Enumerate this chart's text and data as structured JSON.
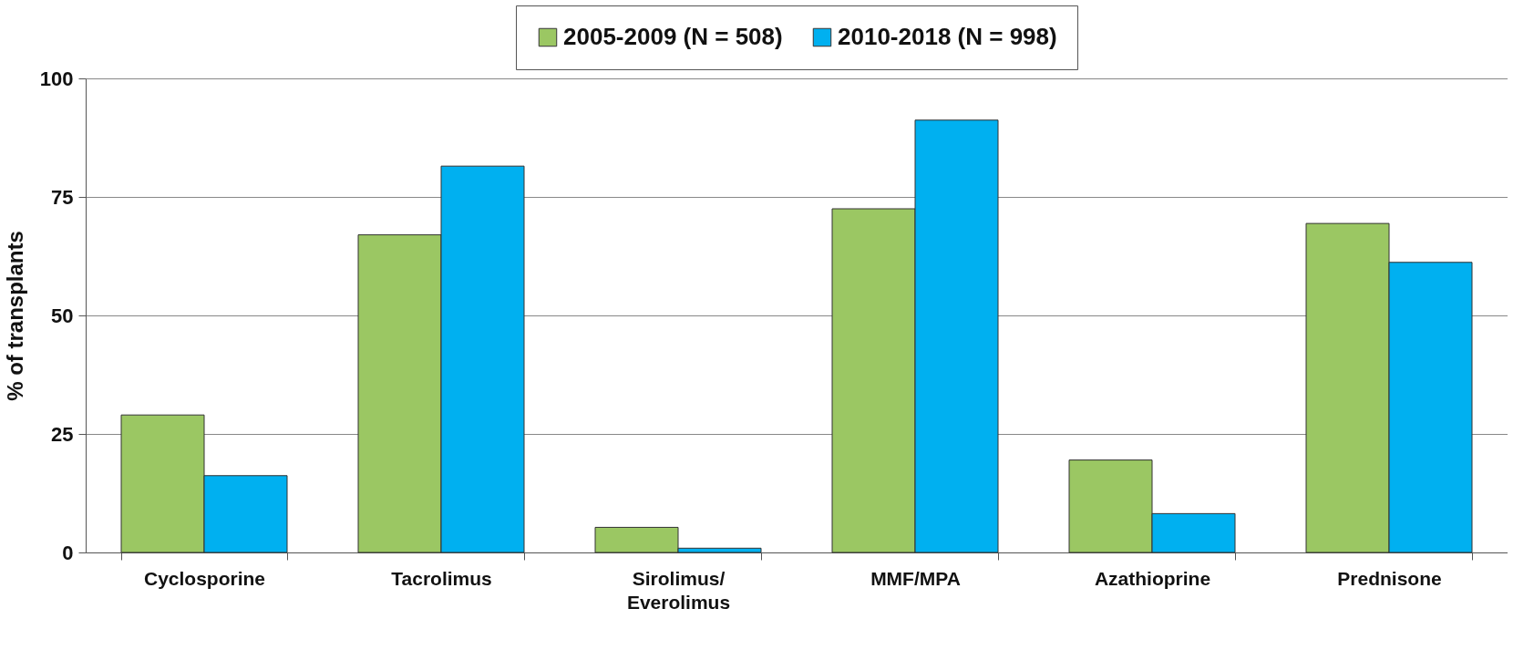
{
  "chart_data": {
    "type": "bar",
    "ylabel": "% of transplants",
    "categories": [
      "Cyclosporine",
      "Tacrolimus",
      "Sirolimus/\nEverolimus",
      "MMF/MPA",
      "Azathioprine",
      "Prednisone"
    ],
    "series": [
      {
        "name": "2005-2009 (N = 508)",
        "color": "#9bc763",
        "values": [
          29.0,
          67.0,
          5.3,
          72.5,
          19.5,
          69.4
        ]
      },
      {
        "name": "2010-2018 (N = 998)",
        "color": "#00b0f0",
        "values": [
          16.2,
          81.5,
          0.9,
          91.2,
          8.2,
          61.2
        ]
      }
    ],
    "ylim": [
      0,
      100
    ],
    "yticks": [
      0,
      25,
      50,
      75,
      100
    ],
    "grid": "y",
    "legend": "top"
  }
}
